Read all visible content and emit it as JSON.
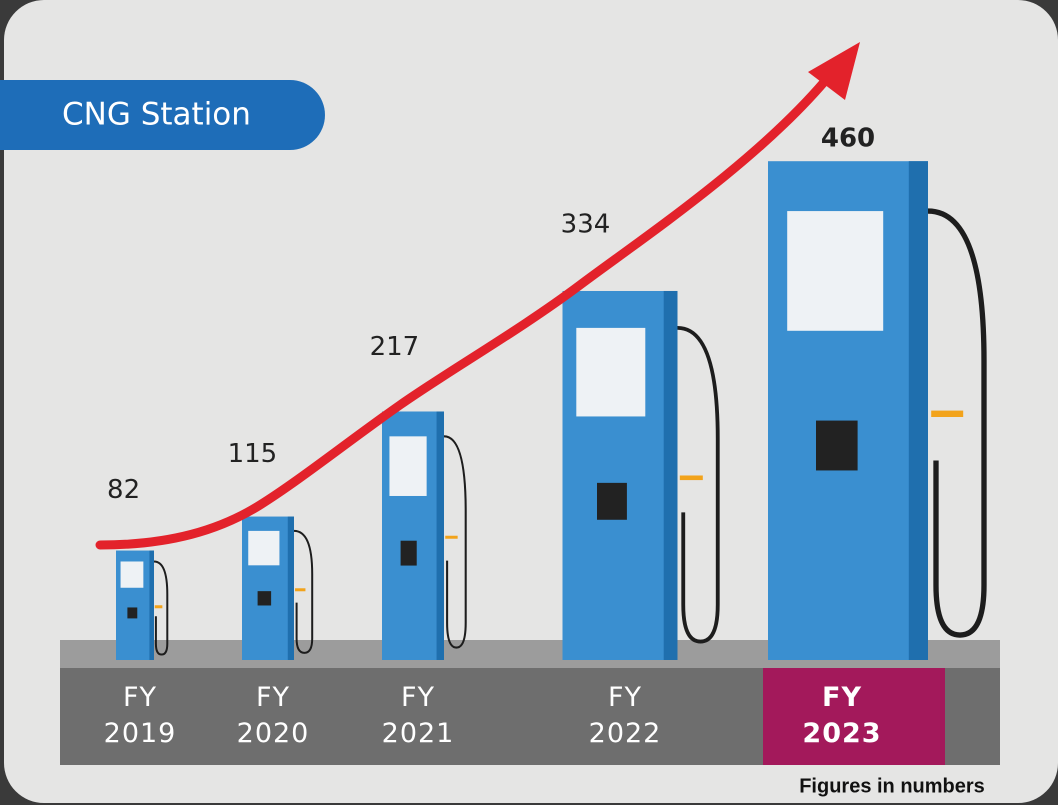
{
  "chart_data": {
    "type": "bar",
    "title": "CNG Station",
    "categories": [
      "FY 2019",
      "FY 2020",
      "FY 2021",
      "FY 2022",
      "FY 2023"
    ],
    "values": [
      82,
      115,
      217,
      334,
      460
    ],
    "color": "#3a8fd0",
    "highlight_color": "#a3195b",
    "note": "Figures in numbers"
  }
}
